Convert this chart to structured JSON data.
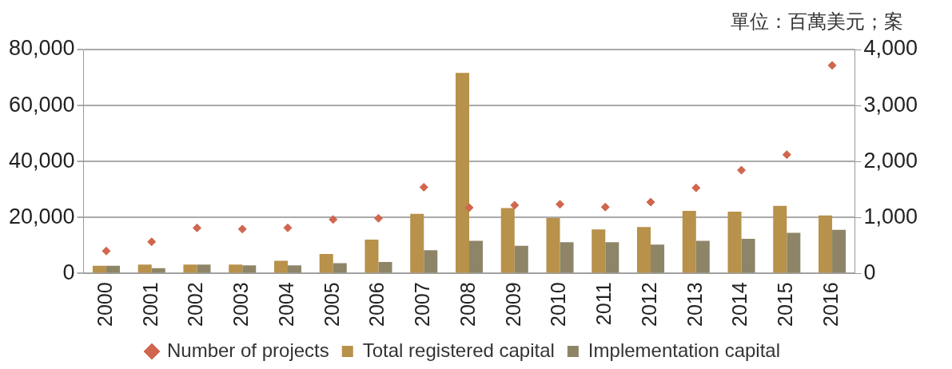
{
  "chart_data": {
    "type": "bar",
    "categories": [
      "2000",
      "2001",
      "2002",
      "2003",
      "2004",
      "2005",
      "2006",
      "2007",
      "2008",
      "2009",
      "2010",
      "2011",
      "2012",
      "2013",
      "2014",
      "2015",
      "2016"
    ],
    "series": [
      {
        "name": "Total registered capital",
        "color": "#b8914a",
        "values": [
          2770,
          3200,
          3200,
          3200,
          4540,
          6980,
          12080,
          21270,
          71690,
          23380,
          19830,
          15730,
          16620,
          22380,
          22050,
          24150,
          20720
        ]
      },
      {
        "name": "Implementation capital",
        "color": "#8e8568",
        "values": [
          2770,
          1900,
          3200,
          2900,
          2900,
          3660,
          4100,
          8310,
          11630,
          9860,
          11190,
          11190,
          10300,
          11630,
          12410,
          14510,
          15620
        ]
      },
      {
        "name": "Number of projects",
        "type": "scatter",
        "axis": "y2",
        "marker": "diamond",
        "color": "#d0664e",
        "values": [
          400,
          565,
          814,
          792,
          814,
          964,
          986,
          1540,
          1175,
          1219,
          1235,
          1186,
          1274,
          1529,
          1845,
          2122,
          3717
        ]
      }
    ],
    "ylim": [
      0,
      80000
    ],
    "yticks": [
      {
        "value": 0,
        "label": "0"
      },
      {
        "value": 20000,
        "label": "20,000"
      },
      {
        "value": 40000,
        "label": "40,000"
      },
      {
        "value": 60000,
        "label": "60,000"
      },
      {
        "value": 80000,
        "label": "80,000"
      }
    ],
    "y2lim": [
      0,
      4000
    ],
    "y2ticks": [
      {
        "value": 0,
        "label": "0"
      },
      {
        "value": 1000,
        "label": "1,000"
      },
      {
        "value": 2000,
        "label": "2,000"
      },
      {
        "value": 3000,
        "label": "3,000"
      },
      {
        "value": 4000,
        "label": "4,000"
      }
    ],
    "grid": "y",
    "legend": "bottom",
    "annotations": [
      "單位：百萬美元；案"
    ]
  }
}
